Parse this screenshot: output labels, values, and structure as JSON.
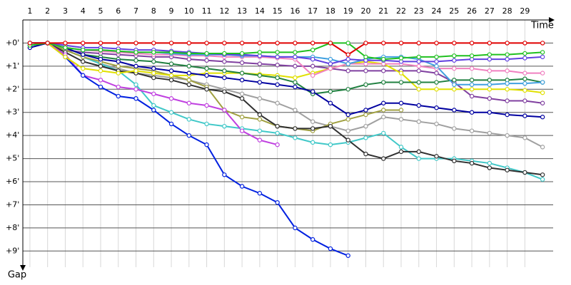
{
  "chart_data": {
    "type": "line",
    "x_label": "Time",
    "y_label": "Gap",
    "x": [
      1,
      2,
      3,
      4,
      5,
      6,
      7,
      8,
      9,
      10,
      11,
      12,
      13,
      14,
      15,
      16,
      17,
      18,
      19,
      20,
      21,
      22,
      23,
      24,
      25,
      26,
      27,
      28,
      29,
      30
    ],
    "xlim": [
      0.6,
      30.6
    ],
    "xticks": [
      1,
      2,
      3,
      4,
      5,
      6,
      7,
      8,
      9,
      10,
      11,
      12,
      13,
      14,
      15,
      16,
      17,
      18,
      19,
      20,
      21,
      22,
      23,
      24,
      25,
      26,
      27,
      28,
      29
    ],
    "ylim": [
      -1,
      9.7
    ],
    "yticks": [
      {
        "value": 0,
        "label": "+0'"
      },
      {
        "value": 1,
        "label": "+1'"
      },
      {
        "value": 2,
        "label": "+2'"
      },
      {
        "value": 3,
        "label": "+3'"
      },
      {
        "value": 4,
        "label": "+4'"
      },
      {
        "value": 5,
        "label": "+5'"
      },
      {
        "value": 6,
        "label": "+6'"
      },
      {
        "value": 7,
        "label": "+7'"
      },
      {
        "value": 8,
        "label": "+8'"
      },
      {
        "value": 9,
        "label": "+9'"
      }
    ],
    "grid": true,
    "series": [
      {
        "color": "#8040a0",
        "values": [
          0,
          0,
          0.3,
          0.4,
          0.45,
          0.5,
          0.55,
          0.6,
          0.6,
          0.7,
          0.75,
          0.8,
          0.85,
          0.9,
          0.95,
          1.0,
          1.0,
          1.1,
          1.2,
          1.2,
          1.2,
          1.2,
          1.2,
          1.3,
          1.7,
          2.3,
          2.4,
          2.5,
          2.5,
          2.6
        ]
      },
      {
        "color": "#a0a0a0",
        "values": [
          0,
          0,
          0.3,
          0.6,
          0.9,
          1.1,
          1.3,
          1.4,
          1.5,
          1.6,
          1.8,
          2.0,
          2.2,
          2.4,
          2.6,
          2.9,
          3.4,
          3.6,
          3.8,
          3.6,
          3.2,
          3.3,
          3.4,
          3.5,
          3.7,
          3.8,
          3.9,
          4.0,
          4.1,
          4.5
        ]
      },
      {
        "color": "#40c8c8",
        "values": [
          0,
          0,
          0.3,
          0.6,
          0.9,
          1.2,
          1.8,
          2.7,
          3.0,
          3.3,
          3.5,
          3.6,
          3.7,
          3.8,
          3.9,
          4.1,
          4.3,
          4.4,
          4.3,
          4.1,
          3.9,
          4.5,
          5.0,
          5.0,
          5.0,
          5.1,
          5.2,
          5.4,
          5.6,
          5.9
        ]
      },
      {
        "color": "#a0a040",
        "values": [
          0,
          0,
          0.3,
          0.6,
          0.8,
          1.0,
          1.1,
          1.2,
          1.4,
          1.6,
          1.9,
          2.9,
          3.2,
          3.3,
          3.6,
          3.7,
          3.8,
          3.5,
          3.3,
          3.1,
          2.9,
          2.9,
          null,
          null,
          null,
          null,
          null,
          null,
          null,
          null
        ]
      },
      {
        "color": "#303030",
        "values": [
          0,
          0,
          0.4,
          0.8,
          1.0,
          1.2,
          1.3,
          1.5,
          1.6,
          1.8,
          2.0,
          2.1,
          2.4,
          3.1,
          3.6,
          3.7,
          3.7,
          3.6,
          4.2,
          4.8,
          5.0,
          4.7,
          4.7,
          4.9,
          5.1,
          5.2,
          5.4,
          5.5,
          5.6,
          5.7
        ]
      },
      {
        "color": "#c040e0",
        "values": [
          0,
          0,
          0.5,
          1.4,
          1.6,
          1.9,
          2.0,
          2.2,
          2.4,
          2.6,
          2.7,
          2.9,
          3.8,
          4.2,
          4.4,
          null,
          null,
          null,
          null,
          null,
          null,
          null,
          null,
          null,
          null,
          null,
          null,
          null,
          null,
          null
        ]
      },
      {
        "color": "#0020e0",
        "values": [
          0.1,
          0,
          0.6,
          1.4,
          1.9,
          2.3,
          2.4,
          2.9,
          3.5,
          4.0,
          4.4,
          5.7,
          6.2,
          6.5,
          6.9,
          8.0,
          8.5,
          8.9,
          9.2,
          null,
          null,
          null,
          null,
          null,
          null,
          null,
          null,
          null,
          null,
          null
        ]
      },
      {
        "color": "#e0e000",
        "values": [
          0,
          0,
          0.6,
          1.1,
          1.2,
          1.3,
          1.2,
          1.3,
          1.4,
          1.4,
          1.3,
          1.3,
          1.3,
          1.35,
          1.4,
          1.5,
          1.3,
          1.1,
          0.9,
          0.8,
          0.9,
          1.3,
          2.0,
          2.0,
          2.0,
          2.0,
          2.0,
          2.0,
          2.05,
          2.15
        ]
      },
      {
        "color": "#208040",
        "values": [
          0,
          0,
          0.2,
          0.5,
          0.6,
          0.7,
          0.75,
          0.8,
          0.9,
          1.0,
          1.1,
          1.2,
          1.3,
          1.4,
          1.5,
          1.7,
          2.2,
          2.1,
          2.0,
          1.8,
          1.7,
          1.7,
          1.7,
          1.7,
          1.6,
          1.6,
          1.6,
          1.6,
          1.55,
          1.7
        ]
      },
      {
        "color": "#0000a0",
        "values": [
          0.2,
          0,
          0.2,
          0.5,
          0.7,
          0.8,
          1.0,
          1.1,
          1.2,
          1.3,
          1.4,
          1.5,
          1.6,
          1.7,
          1.8,
          1.9,
          2.1,
          2.6,
          3.1,
          2.9,
          2.6,
          2.6,
          2.7,
          2.8,
          2.9,
          3.0,
          3.0,
          3.1,
          3.15,
          3.2
        ]
      },
      {
        "color": "#f080c0",
        "values": [
          0,
          0,
          0.2,
          0.3,
          0.35,
          0.4,
          0.45,
          0.5,
          0.5,
          0.55,
          0.55,
          0.6,
          0.6,
          0.6,
          0.65,
          0.7,
          1.4,
          1.1,
          0.9,
          0.9,
          0.9,
          0.9,
          1.0,
          1.1,
          1.1,
          1.1,
          1.2,
          1.2,
          1.3,
          1.3
        ]
      },
      {
        "color": "#40a0e0",
        "values": [
          0,
          0,
          0.2,
          0.3,
          0.3,
          0.35,
          0.4,
          0.4,
          0.45,
          0.5,
          0.5,
          0.5,
          0.55,
          0.55,
          0.6,
          0.6,
          0.6,
          0.7,
          0.9,
          0.7,
          0.6,
          0.6,
          0.7,
          1.0,
          1.8,
          1.8,
          1.8,
          1.75,
          1.75,
          1.7
        ]
      },
      {
        "color": "#6040e0",
        "values": [
          0,
          0,
          0.1,
          0.2,
          0.2,
          0.25,
          0.3,
          0.3,
          0.35,
          0.4,
          0.45,
          0.5,
          0.5,
          0.55,
          0.6,
          0.6,
          0.7,
          0.9,
          0.7,
          0.75,
          0.75,
          0.8,
          0.8,
          0.8,
          0.75,
          0.7,
          0.7,
          0.7,
          0.65,
          0.6
        ]
      },
      {
        "color": "#20c020",
        "values": [
          0.1,
          0,
          0.2,
          0.3,
          0.3,
          0.35,
          0.4,
          0.4,
          0.4,
          0.45,
          0.45,
          0.45,
          0.45,
          0.4,
          0.4,
          0.4,
          0.3,
          0,
          0,
          0.6,
          0.7,
          0.65,
          0.6,
          0.6,
          0.55,
          0.55,
          0.5,
          0.5,
          0.45,
          0.4
        ]
      },
      {
        "color": "#e00000",
        "values": [
          0,
          0,
          0,
          0,
          0,
          0,
          0,
          0,
          0,
          0,
          0,
          0,
          0,
          0,
          0,
          0,
          0,
          0,
          0.5,
          0,
          0,
          0,
          0,
          0,
          0,
          0,
          0,
          0,
          0,
          0
        ]
      }
    ]
  }
}
